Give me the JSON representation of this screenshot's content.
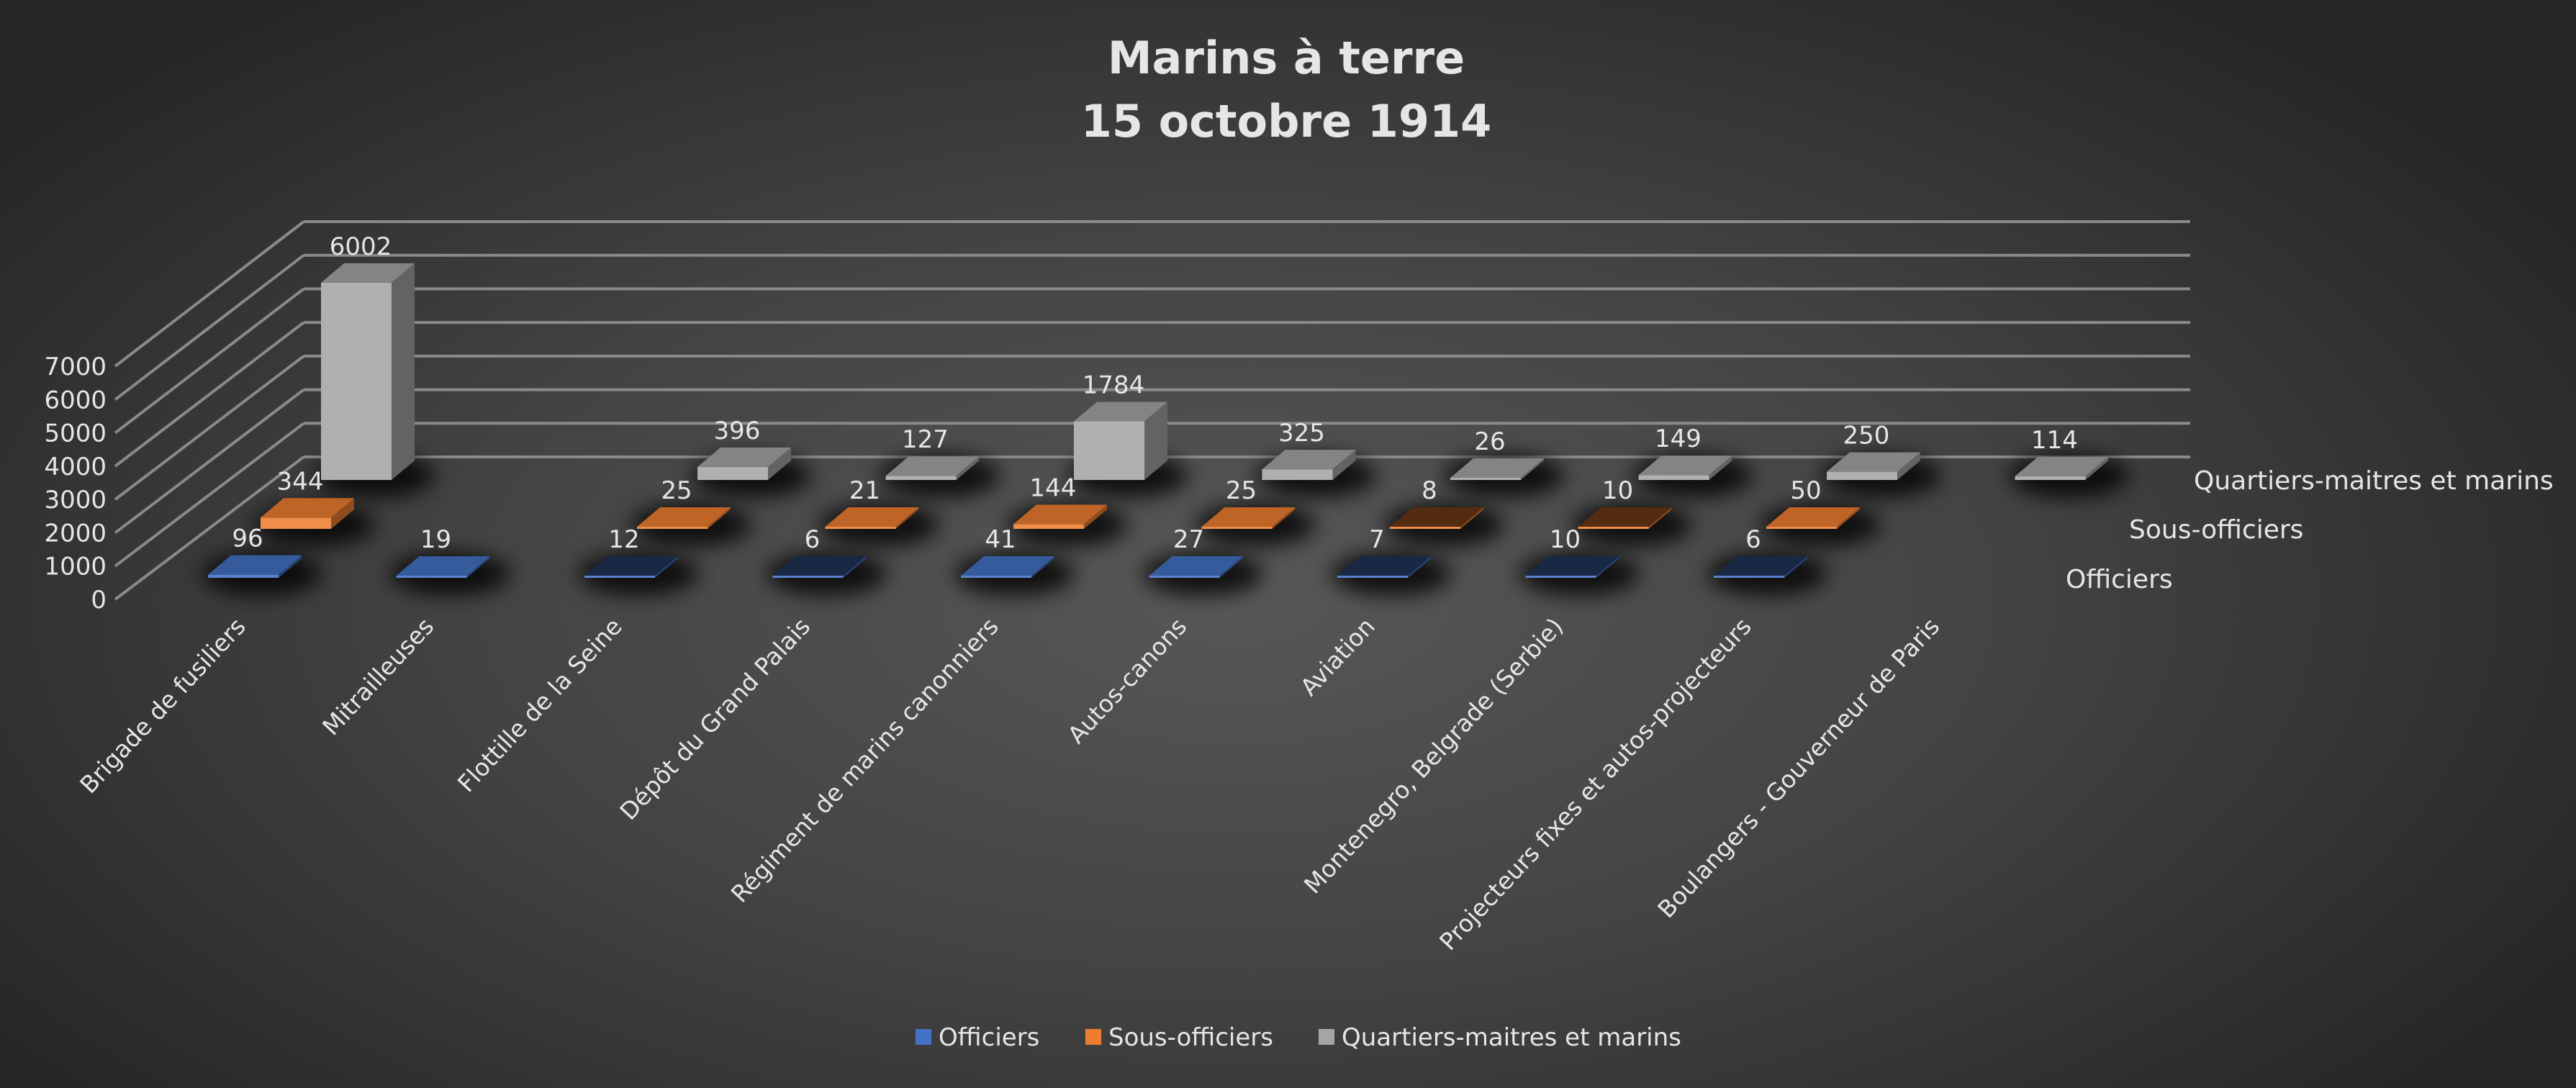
{
  "chart_data": {
    "type": "bar",
    "subtype": "3d-column",
    "title": [
      "Marins à terre",
      "15 octobre 1914"
    ],
    "categories": [
      "Brigade de fusiliers",
      "Mitrailleuses",
      "Flottille de la Seine",
      "Dépôt du Grand Palais",
      "Régiment de marins canonniers",
      "Autos-canons",
      "Aviation",
      "Montenegro, Belgrade (Serbie)",
      "Projecteurs fixes et autos-projecteurs",
      "Boulangers - Gouverneur de Paris"
    ],
    "series": [
      {
        "name": "Officiers",
        "color": "#4472c4",
        "values": [
          96,
          19,
          12,
          6,
          41,
          27,
          7,
          10,
          6,
          null
        ]
      },
      {
        "name": "Sous-officiers",
        "color": "#ed7d31",
        "values": [
          344,
          null,
          25,
          21,
          144,
          25,
          8,
          10,
          50,
          null
        ]
      },
      {
        "name": "Quartiers-maitres et marins",
        "color": "#a5a5a5",
        "values": [
          6002,
          null,
          396,
          127,
          1784,
          325,
          26,
          149,
          250,
          114
        ]
      }
    ],
    "yticks": [
      0,
      1000,
      2000,
      3000,
      4000,
      5000,
      6000,
      7000
    ],
    "ylim": [
      0,
      7000
    ],
    "grid": true,
    "legend": "bottom",
    "xlabel": "",
    "ylabel": ""
  }
}
